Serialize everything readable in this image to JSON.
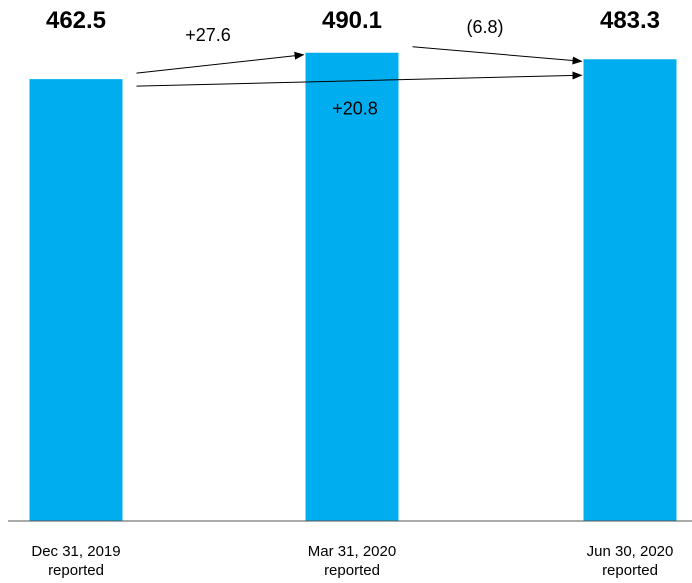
{
  "chart_data": {
    "type": "bar",
    "categories": [
      [
        "Dec 31, 2019",
        "reported"
      ],
      [
        "Mar 31, 2020",
        "reported"
      ],
      [
        "Jun 30, 2020",
        "reported"
      ]
    ],
    "values": [
      462.5,
      490.1,
      483.3
    ],
    "value_labels": [
      "462.5",
      "490.1",
      "483.3"
    ],
    "bar_color": "#00AEEF",
    "baseline_value": 0,
    "grid": false,
    "annotations": [
      {
        "from": 0,
        "to": 1,
        "label": "+27.6",
        "label_position": "above"
      },
      {
        "from": 1,
        "to": 2,
        "label": "(6.8)",
        "label_position": "above"
      },
      {
        "from": 0,
        "to": 2,
        "label": "+20.8",
        "label_position": "below"
      }
    ]
  }
}
